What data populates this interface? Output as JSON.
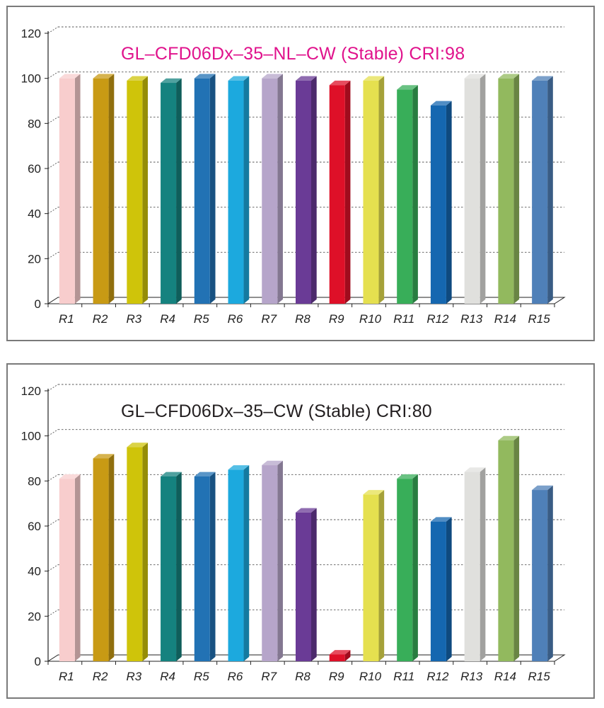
{
  "chart_data": [
    {
      "type": "bar",
      "title": "GL–CFD06Dx–35–NL–CW (Stable) CRI:98",
      "title_color": "#e0128c",
      "xlabel": "",
      "ylabel": "",
      "ylim": [
        0,
        120
      ],
      "yticks": [
        "0",
        "20",
        "40",
        "60",
        "80",
        "100",
        "120"
      ],
      "grid": true,
      "categories": [
        "R1",
        "R2",
        "R3",
        "R4",
        "R5",
        "R6",
        "R7",
        "R8",
        "R9",
        "R10",
        "R11",
        "R12",
        "R13",
        "R14",
        "R15"
      ],
      "values": [
        100,
        100,
        99,
        98,
        100,
        99,
        100,
        99,
        97,
        99,
        95,
        88,
        100,
        100,
        99
      ],
      "bar_colors": [
        "#f8cdcd",
        "#c89a14",
        "#cfc40a",
        "#15827f",
        "#2272b4",
        "#1ca9de",
        "#b6a5ca",
        "#6a3b96",
        "#de1028",
        "#e5e04f",
        "#38ae59",
        "#1567b0",
        "#e0e0dd",
        "#92b95e",
        "#4f80b8"
      ]
    },
    {
      "type": "bar",
      "title": "GL–CFD06Dx–35–CW (Stable) CRI:80",
      "title_color": "#231f20",
      "xlabel": "",
      "ylabel": "",
      "ylim": [
        0,
        120
      ],
      "yticks": [
        "0",
        "20",
        "40",
        "60",
        "80",
        "100",
        "120"
      ],
      "grid": true,
      "categories": [
        "R1",
        "R2",
        "R3",
        "R4",
        "R5",
        "R6",
        "R7",
        "R8",
        "R9",
        "R10",
        "R11",
        "R12",
        "R13",
        "R14",
        "R15"
      ],
      "values": [
        81,
        90,
        95,
        82,
        82,
        85,
        87,
        66,
        3,
        74,
        81,
        62,
        84,
        98,
        76
      ],
      "bar_colors": [
        "#f8cdcd",
        "#c89a14",
        "#cfc40a",
        "#15827f",
        "#2272b4",
        "#1ca9de",
        "#b6a5ca",
        "#6a3b96",
        "#de1028",
        "#e5e04f",
        "#38ae59",
        "#1567b0",
        "#e0e0dd",
        "#92b95e",
        "#4f80b8"
      ]
    }
  ]
}
